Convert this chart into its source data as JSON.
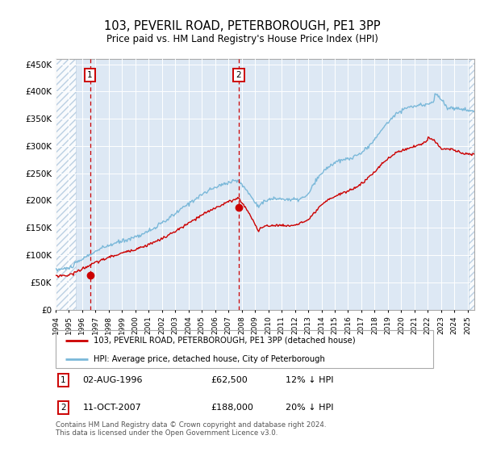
{
  "title": "103, PEVERIL ROAD, PETERBOROUGH, PE1 3PP",
  "subtitle": "Price paid vs. HM Land Registry's House Price Index (HPI)",
  "legend_line1": "103, PEVERIL ROAD, PETERBOROUGH, PE1 3PP (detached house)",
  "legend_line2": "HPI: Average price, detached house, City of Peterborough",
  "annotation1_date": "02-AUG-1996",
  "annotation1_price": "£62,500",
  "annotation1_hpi": "12% ↓ HPI",
  "annotation2_date": "11-OCT-2007",
  "annotation2_price": "£188,000",
  "annotation2_hpi": "20% ↓ HPI",
  "footer": "Contains HM Land Registry data © Crown copyright and database right 2024.\nThis data is licensed under the Open Government Licence v3.0.",
  "hpi_color": "#7ab8d9",
  "price_color": "#cc0000",
  "vline_color": "#cc0000",
  "dot_color": "#cc0000",
  "bg_color": "#dde8f4",
  "plot_bg": "#ffffff",
  "ylim": [
    0,
    460000
  ],
  "yticks": [
    0,
    50000,
    100000,
    150000,
    200000,
    250000,
    300000,
    350000,
    400000,
    450000
  ],
  "sale1_x": 1996.58,
  "sale1_y": 62500,
  "sale2_x": 2007.78,
  "sale2_y": 188000,
  "xmin": 1994.0,
  "xmax": 2025.5,
  "hatch_end": 1995.5,
  "hatch_start2": 2025.1
}
